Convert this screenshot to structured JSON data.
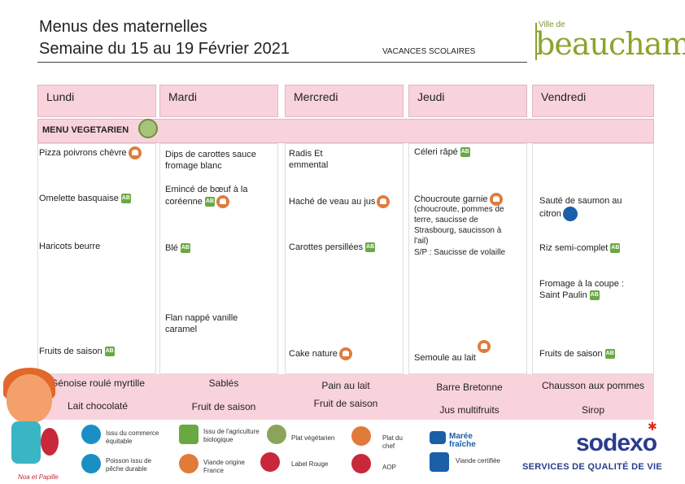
{
  "header": {
    "title_line1": "Menus des maternelles",
    "title_line2": "Semaine du 15 au 19 Février 2021",
    "vacances": "VACANCES SCOLAIRES",
    "logo_small": "Ville de",
    "logo_big": "beauchamp"
  },
  "days": [
    "Lundi",
    "Mardi",
    "Mercredi",
    "Jeudi",
    "Vendredi"
  ],
  "band_label": "MENU VEGETARIEN",
  "menu": {
    "lundi": [
      "Pizza poivrons chèvre",
      "Omelette basquaise",
      "Haricots beurre",
      "Fruits de saison"
    ],
    "mardi": [
      "Dips de carottes sauce fromage blanc",
      "Emincé de bœuf à la coréenne",
      "Blé",
      "Flan nappé vanille caramel"
    ],
    "mercredi": [
      "Radis Et emmental",
      "Haché de veau au jus",
      "Carottes persillées",
      "Cake nature"
    ],
    "jeudi": [
      "Céleri râpé",
      "Choucroute garnie",
      "(choucroute, pommes de terre, saucisse de Strasbourg, saucisson à l'ail)",
      "S/P : Saucisse de volaille",
      "Semoule au lait"
    ],
    "vendredi": [
      "Sauté de saumon au citron",
      "Riz semi-complet",
      "Fromage à la coupe : Saint Paulin",
      "Fruits de saison"
    ]
  },
  "gouter": {
    "lundi": [
      "Génoise roulé myrtille",
      "Lait chocolaté"
    ],
    "mardi": [
      "Sablés",
      "Fruit de saison"
    ],
    "mercredi": [
      "Pain au lait",
      "Fruit de saison"
    ],
    "jeudi": [
      "Barre Bretonne",
      "Jus multifruits"
    ],
    "vendredi": [
      "Chausson aux pommes",
      "Sirop"
    ]
  },
  "legend": [
    {
      "label": "Issu du commerce équitable",
      "icon": "fair-trade-icon",
      "color": "#1a8fc4"
    },
    {
      "label": "Poisson issu de pêche durable",
      "icon": "sustainable-fish-icon",
      "color": "#1a8fc4"
    },
    {
      "label": "Issu de l'agriculture biologique",
      "icon": "bio-icon",
      "color": "#6aa842"
    },
    {
      "label": "Viande origine France",
      "icon": "france-meat-icon",
      "color": "#e07b3a"
    },
    {
      "label": "Plat végétarien",
      "icon": "veg-icon",
      "color": "#8aa55a"
    },
    {
      "label": "Label Rouge",
      "icon": "label-rouge-icon",
      "color": "#c9283a"
    },
    {
      "label": "Plat du chef",
      "icon": "chef-icon",
      "color": "#e07b3a"
    },
    {
      "label": "AOP",
      "icon": "aop-icon",
      "color": "#c9283a"
    },
    {
      "label": "Marée fraîche",
      "icon": "maree-fraiche-icon",
      "color": "#1a5fa8"
    },
    {
      "label": "Viande certifiée",
      "icon": "certified-meat-icon",
      "color": "#1a5fa8"
    }
  ],
  "mascot_text": "Noa et Papille",
  "sodexo": {
    "brand": "sodexo",
    "tagline": "SERVICES DE QUALITÉ DE VIE"
  }
}
